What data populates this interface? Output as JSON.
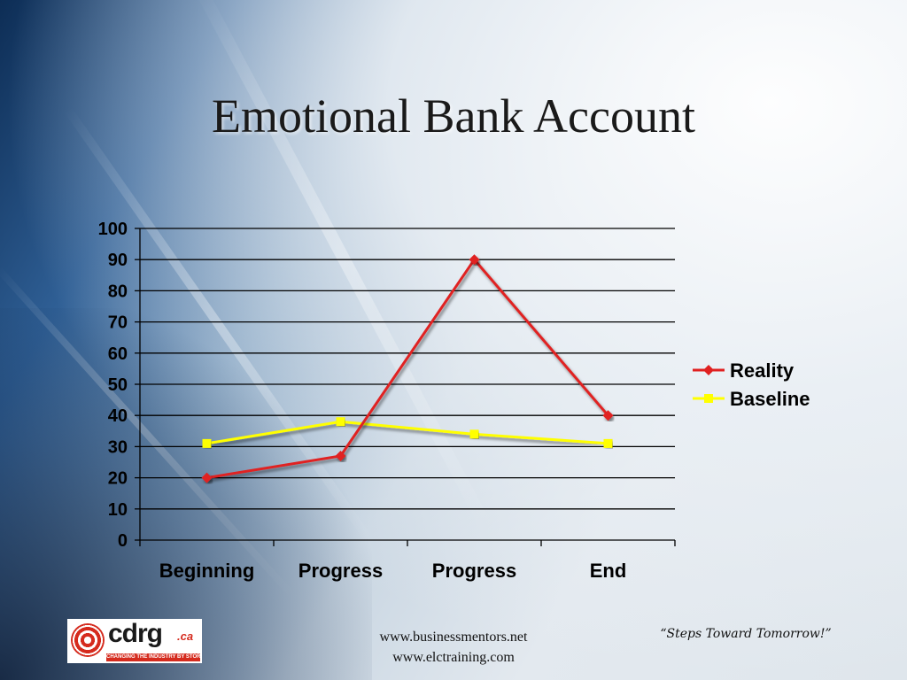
{
  "slide": {
    "title": "Emotional Bank Account"
  },
  "footer": {
    "link1": "www.businessmentors.net",
    "link2": "www.elctraining.com",
    "quote": "“Steps Toward Tomorrow!”"
  },
  "logo": {
    "name": "cdrg",
    "suffix": ".ca",
    "tagline": "CHANGING THE INDUSTRY BY STORM"
  },
  "chart_data": {
    "type": "line",
    "categories": [
      "Beginning",
      "Progress",
      "Progress",
      "End"
    ],
    "series": [
      {
        "name": "Reality",
        "values": [
          20,
          27,
          90,
          40
        ],
        "color": "#e02020",
        "marker": "diamond"
      },
      {
        "name": "Baseline",
        "values": [
          31,
          38,
          34,
          31
        ],
        "color": "#ffff00",
        "marker": "square"
      }
    ],
    "ylim": [
      0,
      100
    ],
    "yticks": [
      0,
      10,
      20,
      30,
      40,
      50,
      60,
      70,
      80,
      90,
      100
    ],
    "grid": true,
    "legend": "right",
    "xlabel": "",
    "ylabel": ""
  }
}
